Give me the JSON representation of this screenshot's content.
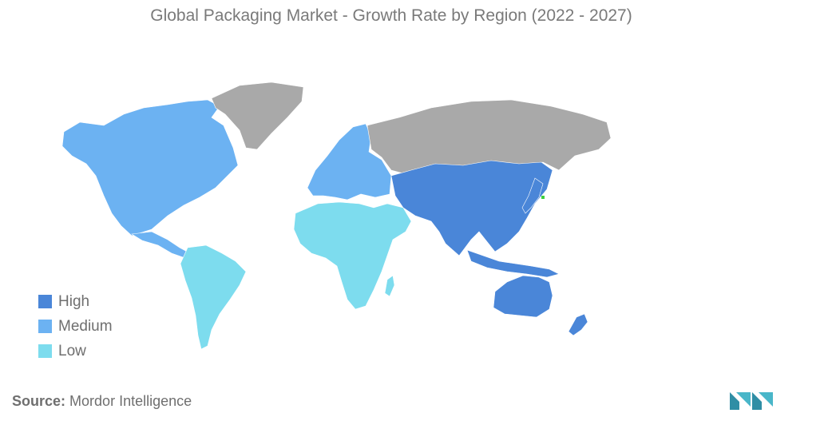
{
  "title": "Global Packaging Market - Growth Rate by Region (2022 - 2027)",
  "colors": {
    "high": "#4a86d8",
    "medium": "#6cb2f2",
    "low": "#7ddcee",
    "unrated": "#a9a9a9",
    "highlight": "#3fcf3f"
  },
  "legend": [
    {
      "label": "High",
      "color_key": "high"
    },
    {
      "label": "Medium",
      "color_key": "medium"
    },
    {
      "label": "Low",
      "color_key": "low"
    }
  ],
  "regions": [
    {
      "name": "North America",
      "level": "medium"
    },
    {
      "name": "Greenland",
      "level": "unrated"
    },
    {
      "name": "Europe",
      "level": "medium"
    },
    {
      "name": "Russia",
      "level": "unrated"
    },
    {
      "name": "Asia-Pacific",
      "level": "high"
    },
    {
      "name": "Australia & New Zealand",
      "level": "high"
    },
    {
      "name": "Latin America",
      "level": "low"
    },
    {
      "name": "Middle East & Africa",
      "level": "low"
    }
  ],
  "source": {
    "label": "Source:",
    "value": "Mordor Intelligence"
  },
  "logo_icon": "mordor-intelligence-logo-icon"
}
